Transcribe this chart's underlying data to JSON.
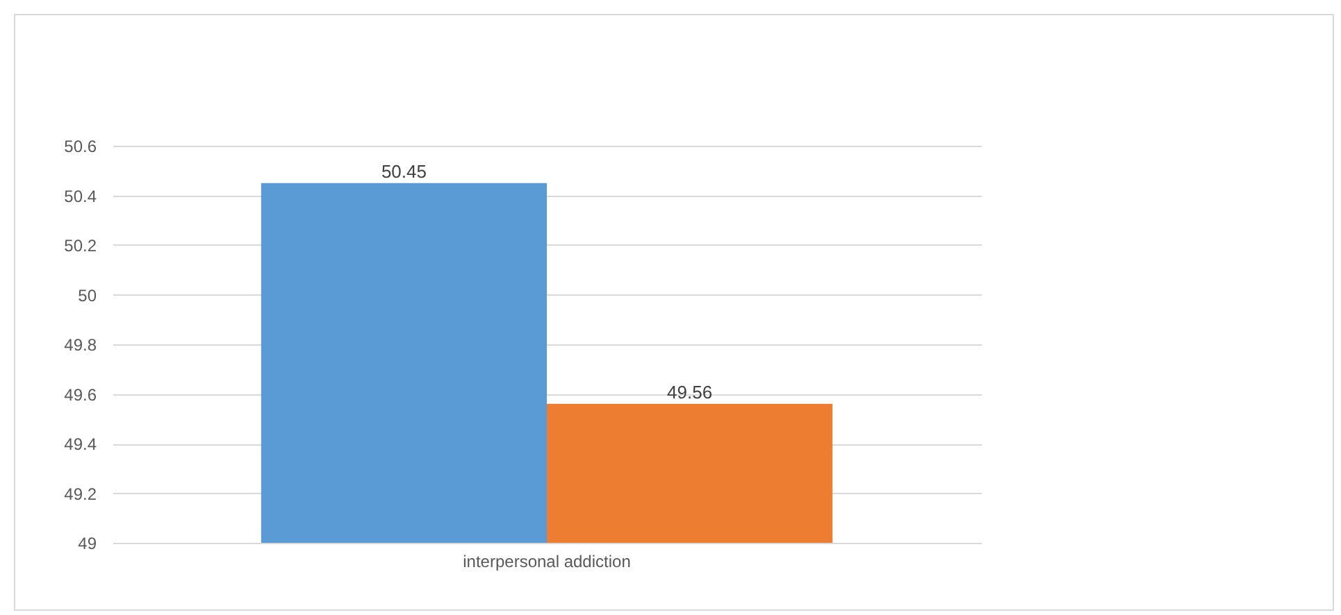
{
  "chart_data": {
    "type": "bar",
    "categories": [
      "interpersonal addiction"
    ],
    "series": [
      {
        "color": "#5b9bd5",
        "values": [
          50.45
        ]
      },
      {
        "color": "#ed7d31",
        "values": [
          49.56
        ]
      }
    ],
    "ylim": [
      49,
      50.6
    ],
    "yticks": [
      49,
      49.2,
      49.4,
      49.6,
      49.8,
      50,
      50.2,
      50.4,
      50.6
    ],
    "grid": "y",
    "data_labels": true
  }
}
